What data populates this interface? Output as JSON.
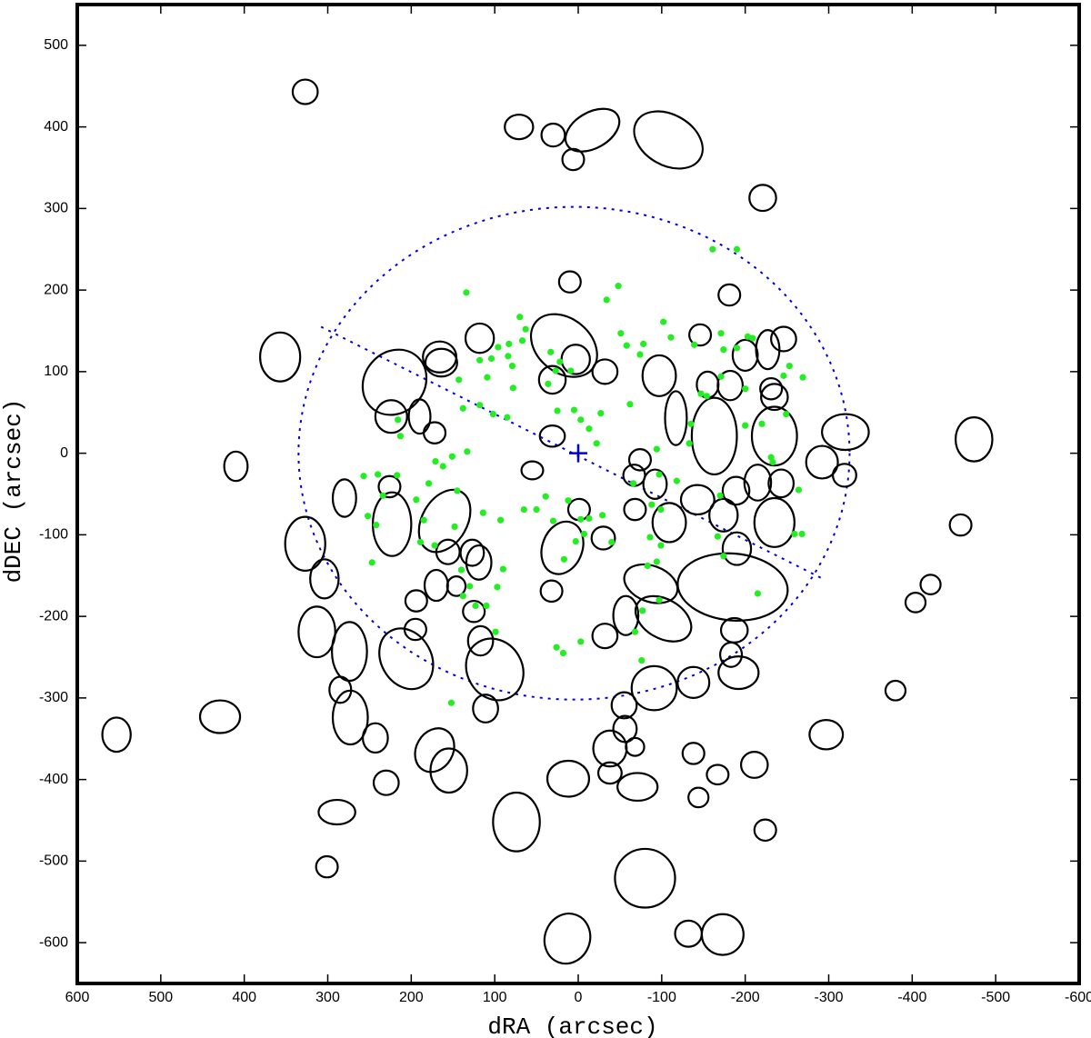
{
  "chart_data": {
    "type": "scatter",
    "x_label": "dRA   (arcsec)",
    "y_label": "dDEC   (arcsec)",
    "xlim": [
      600,
      -600
    ],
    "ylim": [
      -650,
      550
    ],
    "xticks": [
      600,
      500,
      400,
      300,
      200,
      100,
      0,
      -100,
      -200,
      -300,
      -400,
      -500,
      -600
    ],
    "yticks": [
      500,
      400,
      300,
      200,
      100,
      0,
      -100,
      -200,
      -300,
      -400,
      -500,
      -600
    ],
    "ellipse_color": "#000000",
    "ellipses": [
      [
        327,
        443,
        15,
        15,
        0
      ],
      [
        71,
        400,
        17,
        15,
        0
      ],
      [
        30,
        390,
        14,
        14,
        0
      ],
      [
        6,
        360,
        13,
        13,
        0
      ],
      [
        -17,
        396,
        35,
        22,
        -30
      ],
      [
        -108,
        384,
        44,
        31,
        30
      ],
      [
        -221,
        313,
        16,
        16,
        0
      ],
      [
        10,
        210,
        13,
        13,
        0
      ],
      [
        17,
        132,
        44,
        33,
        40
      ],
      [
        357,
        118,
        24,
        30,
        0
      ],
      [
        166,
        118,
        20,
        19,
        0
      ],
      [
        118,
        141,
        17,
        18,
        0
      ],
      [
        220,
        87,
        36,
        42,
        40
      ],
      [
        164,
        111,
        19,
        17,
        0
      ],
      [
        3,
        115,
        17,
        18,
        0
      ],
      [
        -32,
        100,
        15,
        15,
        0
      ],
      [
        31,
        90,
        16,
        17,
        0
      ],
      [
        224,
        45,
        19,
        20,
        0
      ],
      [
        190,
        45,
        13,
        21,
        0
      ],
      [
        172,
        25,
        13,
        13,
        0
      ],
      [
        31,
        21,
        15,
        13,
        0
      ],
      [
        55,
        -21,
        13,
        11,
        0
      ],
      [
        410,
        -16,
        14,
        18,
        0
      ],
      [
        280,
        -55,
        14,
        23,
        0
      ],
      [
        226,
        -41,
        13,
        13,
        0
      ],
      [
        160,
        -83,
        27,
        41,
        30
      ],
      [
        327,
        -111,
        24,
        33,
        0
      ],
      [
        304,
        -154,
        17,
        24,
        0
      ],
      [
        223,
        -87,
        23,
        39,
        0
      ],
      [
        313,
        -219,
        22,
        31,
        0
      ],
      [
        274,
        -243,
        21,
        36,
        0
      ],
      [
        285,
        -290,
        13,
        16,
        0
      ],
      [
        273,
        -324,
        21,
        33,
        0
      ],
      [
        243,
        -349,
        15,
        18,
        0
      ],
      [
        230,
        -404,
        15,
        15,
        0
      ],
      [
        206,
        -252,
        30,
        39,
        -30
      ],
      [
        195,
        -216,
        13,
        13,
        0
      ],
      [
        194,
        -181,
        13,
        13,
        0
      ],
      [
        170,
        -162,
        14,
        19,
        0
      ],
      [
        146,
        -163,
        11,
        12,
        0
      ],
      [
        156,
        -121,
        14,
        15,
        0
      ],
      [
        127,
        -122,
        14,
        16,
        0
      ],
      [
        119,
        -134,
        15,
        21,
        0
      ],
      [
        125,
        -194,
        13,
        13,
        0
      ],
      [
        117,
        -230,
        15,
        18,
        0
      ],
      [
        111,
        -313,
        15,
        17,
        0
      ],
      [
        100,
        -265,
        33,
        39,
        -30
      ],
      [
        172,
        -364,
        22,
        28,
        30
      ],
      [
        155,
        -389,
        22,
        27,
        0
      ],
      [
        289,
        -440,
        22,
        15,
        0
      ],
      [
        301,
        -507,
        13,
        13,
        0
      ],
      [
        429,
        -323,
        24,
        20,
        0
      ],
      [
        553,
        -345,
        17,
        21,
        0
      ],
      [
        32,
        -169,
        13,
        13,
        0
      ],
      [
        19,
        -116,
        24,
        33,
        20
      ],
      [
        -1,
        -69,
        13,
        13,
        0
      ],
      [
        -30,
        -104,
        14,
        14,
        0
      ],
      [
        -32,
        -224,
        15,
        15,
        0
      ],
      [
        -57,
        -199,
        15,
        24,
        0
      ],
      [
        -68,
        -69,
        13,
        13,
        0
      ],
      [
        -67,
        -27,
        13,
        13,
        0
      ],
      [
        -92,
        -38,
        14,
        18,
        0
      ],
      [
        -74,
        -8,
        13,
        13,
        0
      ],
      [
        -109,
        -85,
        20,
        24,
        0
      ],
      [
        -87,
        -160,
        33,
        22,
        20
      ],
      [
        -102,
        -203,
        36,
        24,
        30
      ],
      [
        -91,
        -288,
        27,
        27,
        0
      ],
      [
        -138,
        -281,
        19,
        19,
        0
      ],
      [
        -183,
        -247,
        13,
        15,
        0
      ],
      [
        -187,
        -217,
        16,
        15,
        0
      ],
      [
        -192,
        -269,
        24,
        20,
        0
      ],
      [
        -185,
        -164,
        66,
        41,
        5
      ],
      [
        -190,
        -117,
        17,
        20,
        0
      ],
      [
        -143,
        -57,
        20,
        18,
        0
      ],
      [
        -174,
        -76,
        17,
        20,
        0
      ],
      [
        -189,
        -46,
        16,
        17,
        0
      ],
      [
        -163,
        21,
        27,
        47,
        0
      ],
      [
        -117,
        43,
        13,
        33,
        0
      ],
      [
        -97,
        95,
        20,
        25,
        0
      ],
      [
        -146,
        145,
        13,
        13,
        0
      ],
      [
        -155,
        84,
        13,
        16,
        0
      ],
      [
        -182,
        83,
        15,
        18,
        0
      ],
      [
        -181,
        194,
        13,
        13,
        0
      ],
      [
        -200,
        120,
        15,
        19,
        0
      ],
      [
        -227,
        127,
        14,
        24,
        0
      ],
      [
        -246,
        140,
        15,
        15,
        0
      ],
      [
        -231,
        79,
        13,
        13,
        0
      ],
      [
        -235,
        69,
        16,
        16,
        0
      ],
      [
        -235,
        21,
        27,
        36,
        0
      ],
      [
        -215,
        -36,
        16,
        22,
        0
      ],
      [
        -243,
        -37,
        15,
        17,
        0
      ],
      [
        -235,
        -85,
        24,
        30,
        0
      ],
      [
        -292,
        -11,
        19,
        20,
        0
      ],
      [
        -320,
        26,
        28,
        22,
        0
      ],
      [
        -319,
        -27,
        14,
        14,
        0
      ],
      [
        -474,
        17,
        22,
        27,
        0
      ],
      [
        -458,
        -88,
        13,
        13,
        0
      ],
      [
        -422,
        -161,
        12,
        12,
        0
      ],
      [
        -404,
        -183,
        12,
        12,
        0
      ],
      [
        -380,
        -291,
        12,
        12,
        0
      ],
      [
        -297,
        -345,
        20,
        18,
        0
      ],
      [
        -211,
        -382,
        16,
        16,
        0
      ],
      [
        -224,
        -462,
        13,
        13,
        0
      ],
      [
        -167,
        -394,
        13,
        12,
        0
      ],
      [
        -144,
        -422,
        12,
        12,
        0
      ],
      [
        -138,
        -368,
        13,
        13,
        0
      ],
      [
        -71,
        -409,
        24,
        17,
        0
      ],
      [
        -38,
        -392,
        14,
        13,
        0
      ],
      [
        -38,
        -362,
        20,
        22,
        0
      ],
      [
        -68,
        -360,
        11,
        11,
        0
      ],
      [
        -56,
        -338,
        14,
        16,
        0
      ],
      [
        -55,
        -309,
        15,
        16,
        0
      ],
      [
        12,
        -399,
        25,
        22,
        0
      ],
      [
        74,
        -452,
        28,
        36,
        0
      ],
      [
        -80,
        -521,
        36,
        36,
        0
      ],
      [
        13,
        -595,
        27,
        31,
        20
      ],
      [
        -132,
        -589,
        16,
        16,
        0
      ],
      [
        -173,
        -590,
        25,
        25,
        0
      ]
    ],
    "point_color": "#22ee22",
    "points": [
      [
        134,
        197
      ],
      [
        -48,
        205
      ],
      [
        -34,
        188
      ],
      [
        70,
        167
      ],
      [
        63,
        152
      ],
      [
        83,
        134
      ],
      [
        67,
        138
      ],
      [
        96,
        130
      ],
      [
        84,
        119
      ],
      [
        104,
        116
      ],
      [
        118,
        114
      ],
      [
        79,
        107
      ],
      [
        33,
        124
      ],
      [
        22,
        112
      ],
      [
        9,
        101
      ],
      [
        109,
        93
      ],
      [
        143,
        90
      ],
      [
        27,
        101
      ],
      [
        138,
        55
      ],
      [
        118,
        59
      ],
      [
        102,
        48
      ],
      [
        85,
        44
      ],
      [
        78,
        80
      ],
      [
        36,
        85
      ],
      [
        25,
        52
      ],
      [
        5,
        53
      ],
      [
        -3,
        41
      ],
      [
        -13,
        30
      ],
      [
        -22,
        12
      ],
      [
        -27,
        49
      ],
      [
        -62,
        60
      ],
      [
        -51,
        147
      ],
      [
        -58,
        132
      ],
      [
        -74,
        121
      ],
      [
        -78,
        134
      ],
      [
        -102,
        161
      ],
      [
        -111,
        142
      ],
      [
        -139,
        133
      ],
      [
        -171,
        147
      ],
      [
        -174,
        127
      ],
      [
        -203,
        143
      ],
      [
        -209,
        141
      ],
      [
        -190,
        129
      ],
      [
        -253,
        107
      ],
      [
        -269,
        93
      ],
      [
        -246,
        95
      ],
      [
        -147,
        73
      ],
      [
        -154,
        70
      ],
      [
        -135,
        36
      ],
      [
        -133,
        12
      ],
      [
        -171,
        94
      ],
      [
        -200,
        79
      ],
      [
        -249,
        48
      ],
      [
        -220,
        36
      ],
      [
        -200,
        34
      ],
      [
        -231,
        -5
      ],
      [
        -233,
        -11
      ],
      [
        -264,
        -45
      ],
      [
        -259,
        -99
      ],
      [
        -268,
        -99
      ],
      [
        216,
        41
      ],
      [
        213,
        21
      ],
      [
        257,
        -28
      ],
      [
        240,
        -26
      ],
      [
        217,
        -27
      ],
      [
        234,
        -52
      ],
      [
        151,
        -4
      ],
      [
        171,
        -10
      ],
      [
        162,
        -16
      ],
      [
        133,
        2
      ],
      [
        145,
        -46
      ],
      [
        185,
        -82
      ],
      [
        252,
        -77
      ],
      [
        242,
        -88
      ],
      [
        247,
        -134
      ],
      [
        189,
        -109
      ],
      [
        148,
        -90
      ],
      [
        114,
        -73
      ],
      [
        93,
        -82
      ],
      [
        39,
        -53
      ],
      [
        50,
        -69
      ],
      [
        65,
        -69
      ],
      [
        30,
        -83
      ],
      [
        12,
        -58
      ],
      [
        -3,
        -81
      ],
      [
        -13,
        -80
      ],
      [
        -7,
        -99
      ],
      [
        3,
        -108
      ],
      [
        17,
        -130
      ],
      [
        -40,
        -109
      ],
      [
        -29,
        -76
      ],
      [
        -66,
        -37
      ],
      [
        -88,
        -63
      ],
      [
        -99,
        -69
      ],
      [
        -86,
        -103
      ],
      [
        -99,
        -113
      ],
      [
        -94,
        -133
      ],
      [
        -83,
        -138
      ],
      [
        -97,
        -180
      ],
      [
        -77,
        -193
      ],
      [
        -68,
        -219
      ],
      [
        -76,
        -254
      ],
      [
        -170,
        -52
      ],
      [
        -167,
        -102
      ],
      [
        -174,
        -126
      ],
      [
        -215,
        -172
      ],
      [
        -118,
        -34
      ],
      [
        -94,
        5
      ],
      [
        -97,
        -26
      ],
      [
        179,
        -37
      ],
      [
        194,
        -57
      ],
      [
        140,
        -143
      ],
      [
        130,
        -163
      ],
      [
        123,
        -187
      ],
      [
        110,
        -187
      ],
      [
        99,
        -219
      ],
      [
        26,
        -238
      ],
      [
        -3,
        -231
      ],
      [
        18,
        -245
      ],
      [
        152,
        -306
      ],
      [
        97,
        -164
      ],
      [
        90,
        -142
      ],
      [
        172,
        -113
      ],
      [
        138,
        -175
      ],
      [
        -161,
        250
      ],
      [
        -190,
        250
      ]
    ],
    "field": {
      "color": "#0000dd",
      "center": [
        5,
        0
      ],
      "radii": [
        330,
        302
      ],
      "line": [
        [
          308,
          155
        ],
        [
          -295,
          -155
        ]
      ],
      "marker": [
        0,
        0
      ]
    }
  }
}
